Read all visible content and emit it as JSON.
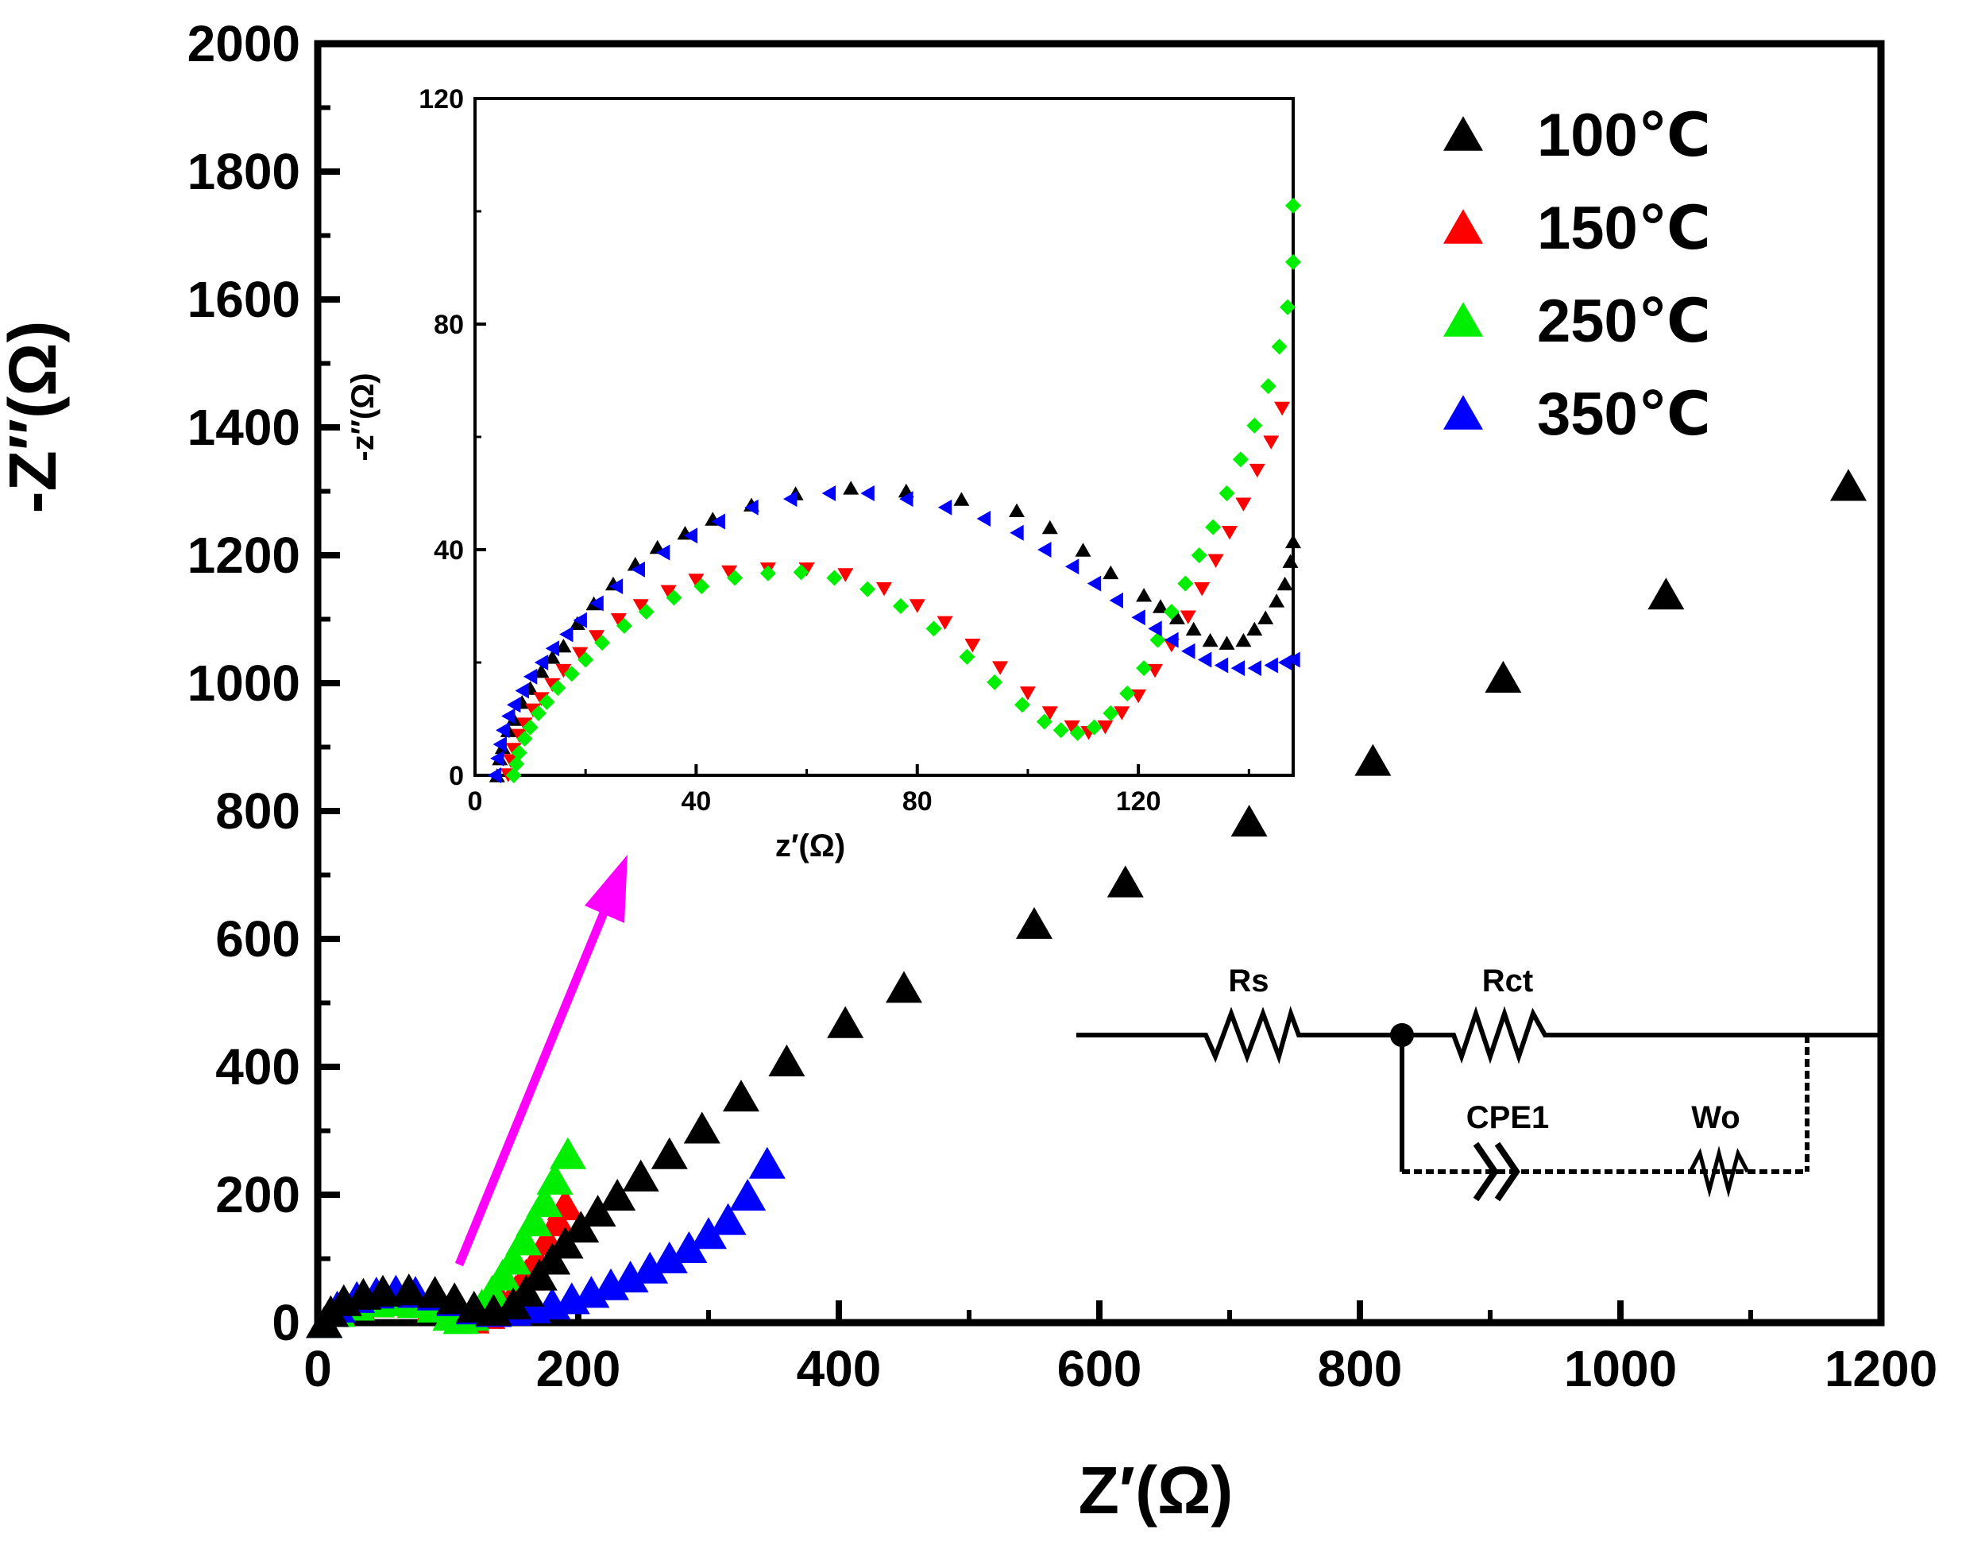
{
  "chart_data": [
    {
      "id": "main",
      "type": "scatter",
      "xlabel": "Z′(Ω)",
      "ylabel": "-Z′′(Ω)",
      "xlim": [
        0,
        1200
      ],
      "ylim": [
        0,
        2000
      ],
      "xticks": [
        "0",
        "200",
        "400",
        "600",
        "800",
        "1000",
        "1200"
      ],
      "yticks": [
        "0",
        "200",
        "400",
        "600",
        "800",
        "1000",
        "1200",
        "1400",
        "1600",
        "1800",
        "2000"
      ],
      "legend_position": "top-right",
      "series": [
        {
          "name": "100℃",
          "color": "#000000",
          "marker": "triangle-up",
          "points": [
            [
              5,
              1
            ],
            [
              10,
              18
            ],
            [
              20,
              35
            ],
            [
              35,
              45
            ],
            [
              50,
              50
            ],
            [
              70,
              52
            ],
            [
              90,
              48
            ],
            [
              105,
              38
            ],
            [
              120,
              25
            ],
            [
              135,
              20
            ],
            [
              150,
              30
            ],
            [
              160,
              50
            ],
            [
              170,
              75
            ],
            [
              180,
              100
            ],
            [
              190,
              125
            ],
            [
              202,
              150
            ],
            [
              215,
              175
            ],
            [
              230,
              200
            ],
            [
              248,
              230
            ],
            [
              270,
              265
            ],
            [
              295,
              305
            ],
            [
              325,
              355
            ],
            [
              360,
              410
            ],
            [
              405,
              470
            ],
            [
              450,
              525
            ],
            [
              550,
              625
            ],
            [
              620,
              690
            ],
            [
              715,
              785
            ],
            [
              810,
              880
            ],
            [
              910,
              1010
            ],
            [
              1035,
              1140
            ],
            [
              1175,
              1310
            ]
          ]
        },
        {
          "name": "150℃",
          "color": "#ff0000",
          "marker": "triangle-up",
          "points": [
            [
              5,
              1
            ],
            [
              15,
              20
            ],
            [
              30,
              30
            ],
            [
              45,
              33
            ],
            [
              60,
              35
            ],
            [
              75,
              33
            ],
            [
              90,
              28
            ],
            [
              105,
              15
            ],
            [
              118,
              8
            ],
            [
              130,
              15
            ],
            [
              142,
              30
            ],
            [
              152,
              50
            ],
            [
              160,
              75
            ],
            [
              168,
              100
            ],
            [
              176,
              130
            ],
            [
              184,
              160
            ],
            [
              190,
              185
            ]
          ]
        },
        {
          "name": "250℃",
          "color": "#00ee00",
          "marker": "triangle-up",
          "points": [
            [
              5,
              1
            ],
            [
              15,
              18
            ],
            [
              30,
              28
            ],
            [
              45,
              33
            ],
            [
              60,
              35
            ],
            [
              75,
              32
            ],
            [
              90,
              25
            ],
            [
              102,
              12
            ],
            [
              110,
              7
            ],
            [
              118,
              12
            ],
            [
              126,
              28
            ],
            [
              134,
              50
            ],
            [
              142,
              75
            ],
            [
              150,
              100
            ],
            [
              158,
              130
            ],
            [
              166,
              160
            ],
            [
              174,
              190
            ],
            [
              182,
              225
            ],
            [
              192,
              265
            ]
          ]
        },
        {
          "name": "350℃",
          "color": "#0000ff",
          "marker": "triangle-up",
          "points": [
            [
              5,
              1
            ],
            [
              15,
              25
            ],
            [
              30,
              40
            ],
            [
              45,
              47
            ],
            [
              60,
              50
            ],
            [
              75,
              48
            ],
            [
              90,
              44
            ],
            [
              105,
              35
            ],
            [
              120,
              22
            ],
            [
              135,
              18
            ],
            [
              150,
              20
            ],
            [
              165,
              24
            ],
            [
              180,
              30
            ],
            [
              195,
              38
            ],
            [
              210,
              48
            ],
            [
              225,
              60
            ],
            [
              240,
              72
            ],
            [
              255,
              86
            ],
            [
              270,
              102
            ],
            [
              285,
              118
            ],
            [
              300,
              140
            ],
            [
              315,
              162
            ],
            [
              330,
              200
            ],
            [
              345,
              250
            ]
          ]
        }
      ]
    },
    {
      "id": "inset",
      "type": "scatter",
      "xlabel": "z′(Ω)",
      "ylabel": "-z′′(Ω)",
      "xlim": [
        0,
        148
      ],
      "ylim": [
        0,
        120
      ],
      "xticks": [
        "0",
        "40",
        "80",
        "120"
      ],
      "yticks": [
        "0",
        "40",
        "80",
        "120"
      ],
      "series": [
        {
          "name": "100℃",
          "color": "#000000",
          "marker": "triangle-up",
          "points": [
            [
              4,
              0
            ],
            [
              4.5,
              3
            ],
            [
              5,
              5
            ],
            [
              6,
              8
            ],
            [
              7,
              10
            ],
            [
              8.5,
              13
            ],
            [
              10,
              15.5
            ],
            [
              12,
              18.5
            ],
            [
              14,
              21
            ],
            [
              16,
              23
            ],
            [
              18.5,
              27
            ],
            [
              21.5,
              30.5
            ],
            [
              25,
              34
            ],
            [
              29,
              37.5
            ],
            [
              33,
              40.5
            ],
            [
              38,
              43
            ],
            [
              43,
              45.5
            ],
            [
              50,
              48
            ],
            [
              58,
              50
            ],
            [
              68,
              51
            ],
            [
              78,
              50.5
            ],
            [
              88,
              49
            ],
            [
              98,
              47
            ],
            [
              104,
              44
            ],
            [
              110,
              40
            ],
            [
              115,
              36
            ],
            [
              121,
              32
            ],
            [
              124,
              30
            ],
            [
              127,
              28
            ],
            [
              130,
              26
            ],
            [
              133,
              24
            ],
            [
              136,
              23.5
            ],
            [
              139,
              24
            ],
            [
              141,
              26
            ],
            [
              143,
              28
            ],
            [
              145,
              31
            ],
            [
              146.5,
              34
            ],
            [
              147.5,
              38
            ],
            [
              148,
              41.5
            ]
          ]
        },
        {
          "name": "150℃",
          "color": "#ff0000",
          "marker": "triangle-down",
          "points": [
            [
              6,
              0
            ],
            [
              6.5,
              2.5
            ],
            [
              7,
              4.5
            ],
            [
              8,
              7
            ],
            [
              9,
              9
            ],
            [
              10.5,
              11.5
            ],
            [
              12,
              13.5
            ],
            [
              14,
              16
            ],
            [
              16,
              18.5
            ],
            [
              19,
              21.5
            ],
            [
              22,
              24.5
            ],
            [
              26,
              27.5
            ],
            [
              30,
              30
            ],
            [
              35,
              32.5
            ],
            [
              40,
              34.5
            ],
            [
              46,
              36
            ],
            [
              53,
              36.5
            ],
            [
              60,
              36.5
            ],
            [
              67,
              35.5
            ],
            [
              74,
              33
            ],
            [
              80,
              30
            ],
            [
              85,
              27
            ],
            [
              90,
              23
            ],
            [
              95,
              19
            ],
            [
              100,
              14.5
            ],
            [
              104,
              11
            ],
            [
              108,
              8.5
            ],
            [
              111,
              7.5
            ],
            [
              114,
              8.5
            ],
            [
              117,
              11
            ],
            [
              120,
              14
            ],
            [
              123,
              18.5
            ],
            [
              126,
              23
            ],
            [
              129,
              28
            ],
            [
              131.5,
              33
            ],
            [
              134,
              38
            ],
            [
              136.5,
              43
            ],
            [
              139,
              48
            ],
            [
              141.5,
              54
            ],
            [
              144,
              59
            ],
            [
              146,
              65
            ]
          ]
        },
        {
          "name": "250℃",
          "color": "#00ee00",
          "marker": "diamond",
          "points": [
            [
              7,
              0
            ],
            [
              7.5,
              2
            ],
            [
              8,
              4
            ],
            [
              9,
              6.5
            ],
            [
              10,
              8.5
            ],
            [
              11.5,
              11
            ],
            [
              13,
              13
            ],
            [
              15,
              15.5
            ],
            [
              17.5,
              18
            ],
            [
              20,
              20.5
            ],
            [
              23,
              23.5
            ],
            [
              27,
              26.5
            ],
            [
              31,
              29
            ],
            [
              36,
              31.5
            ],
            [
              41,
              33.5
            ],
            [
              47,
              35
            ],
            [
              53,
              35.8
            ],
            [
              59,
              36
            ],
            [
              65,
              35
            ],
            [
              71,
              33
            ],
            [
              77,
              30
            ],
            [
              83,
              26
            ],
            [
              89,
              21
            ],
            [
              94,
              16.5
            ],
            [
              99,
              12.5
            ],
            [
              103,
              9.5
            ],
            [
              106,
              8
            ],
            [
              109,
              7.5
            ],
            [
              112,
              8.5
            ],
            [
              115,
              11
            ],
            [
              118,
              14.5
            ],
            [
              121,
              19
            ],
            [
              123.5,
              24
            ],
            [
              126,
              29
            ],
            [
              128.5,
              34
            ],
            [
              131,
              39
            ],
            [
              133.5,
              44
            ],
            [
              136,
              50
            ],
            [
              138.5,
              56
            ],
            [
              141,
              62
            ],
            [
              143.5,
              69
            ],
            [
              145.5,
              76
            ],
            [
              147,
              83
            ],
            [
              148,
              91
            ],
            [
              148,
              101
            ]
          ]
        },
        {
          "name": "350℃",
          "color": "#0000ff",
          "marker": "triangle-left",
          "points": [
            [
              3.5,
              0
            ],
            [
              4,
              3
            ],
            [
              4.5,
              5.5
            ],
            [
              5,
              8
            ],
            [
              6,
              10.5
            ],
            [
              7,
              12.5
            ],
            [
              8.5,
              15
            ],
            [
              10,
              17.5
            ],
            [
              12,
              20
            ],
            [
              14,
              22.5
            ],
            [
              16.5,
              25
            ],
            [
              19,
              27.5
            ],
            [
              22,
              30.5
            ],
            [
              25.5,
              33.5
            ],
            [
              29.5,
              36.5
            ],
            [
              34,
              39.5
            ],
            [
              39,
              42.5
            ],
            [
              44,
              45
            ],
            [
              50,
              47.5
            ],
            [
              57,
              49
            ],
            [
              64,
              50
            ],
            [
              71,
              50
            ],
            [
              78,
              49
            ],
            [
              85,
              47.5
            ],
            [
              92,
              45.5
            ],
            [
              98,
              43
            ],
            [
              103,
              40
            ],
            [
              108,
              37
            ],
            [
              112,
              34
            ],
            [
              116,
              31
            ],
            [
              120,
              28
            ],
            [
              123,
              26
            ],
            [
              126,
              24
            ],
            [
              129,
              22
            ],
            [
              132,
              20.5
            ],
            [
              135,
              19.5
            ],
            [
              138,
              19
            ],
            [
              141,
              19
            ],
            [
              144,
              19.5
            ],
            [
              146.5,
              20
            ],
            [
              148,
              20.5
            ]
          ]
        }
      ]
    }
  ],
  "circuit": {
    "labels": [
      "Rs",
      "Rct",
      "CPE1",
      "Wo"
    ]
  },
  "arrow_color": "#ff00ff"
}
